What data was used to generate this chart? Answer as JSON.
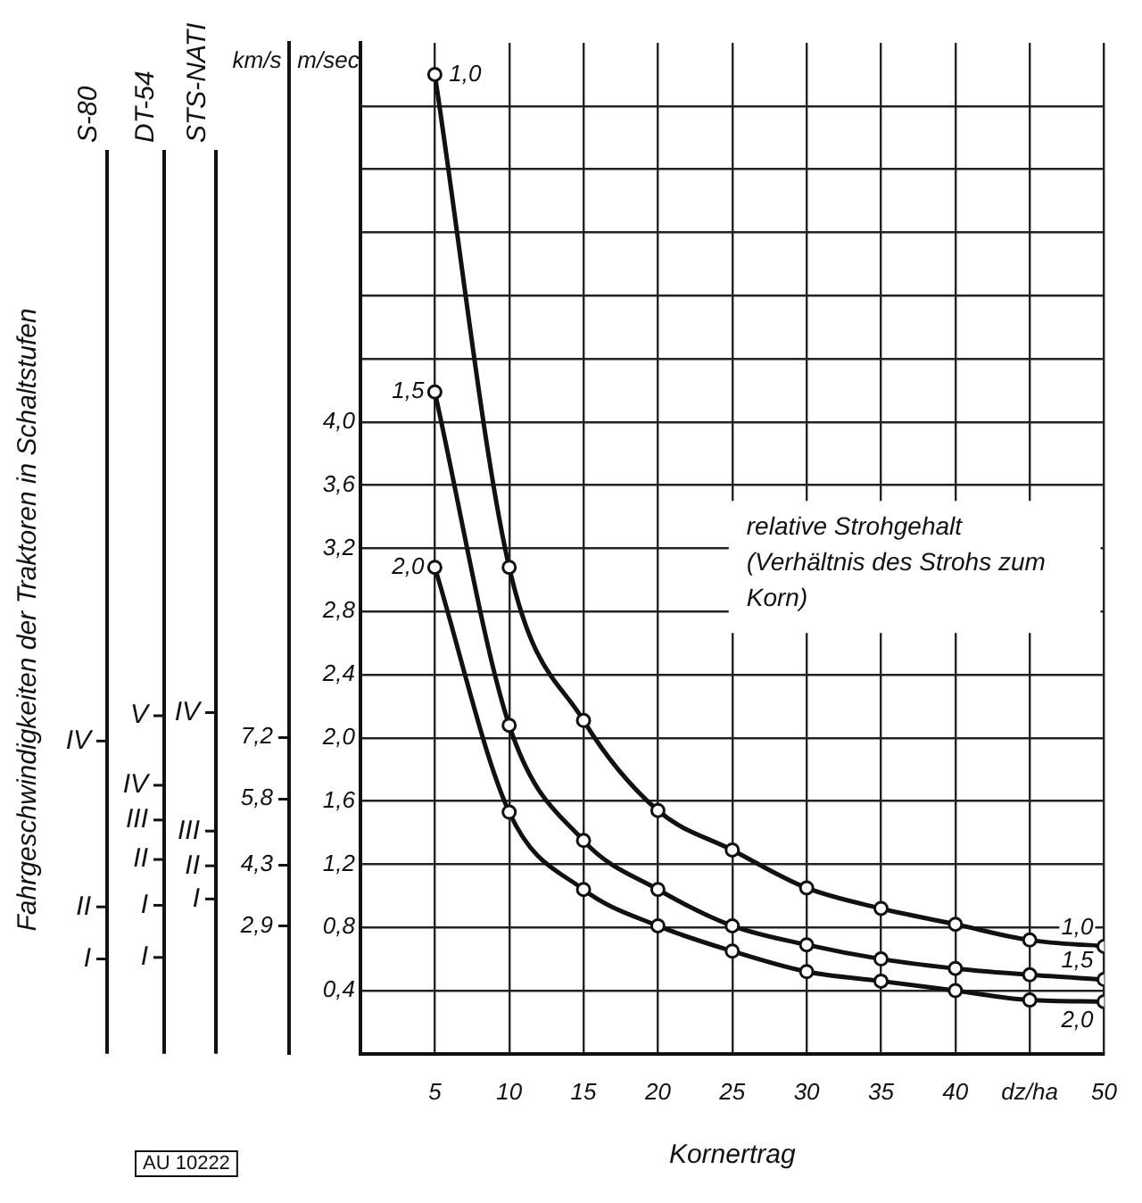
{
  "chart_data": {
    "type": "line",
    "xlabel": "Kornertrag",
    "ylabel": "m/sec",
    "y2label": "km/s",
    "legend_title": "relative Strohgehalt (Verhältnis des Strohs zum Korn)",
    "annotations": [
      "Fahrgeschwindigkeiten der Traktoren in Schaltstufen",
      "AU 10222",
      "S-80",
      "I",
      "II",
      "IV",
      "DT-54",
      "I",
      "I",
      "II",
      "III",
      "IV",
      "V",
      "STS-NATI",
      "I",
      "II",
      "III",
      "IV"
    ],
    "x": [
      5,
      10,
      15,
      20,
      25,
      30,
      35,
      40,
      45,
      50
    ],
    "series": [
      {
        "name": "1,0",
        "color": "#111111",
        "values": [
          6.2,
          3.08,
          2.11,
          1.54,
          1.29,
          1.05,
          0.92,
          0.82,
          0.72,
          0.68
        ]
      },
      {
        "name": "1,5",
        "color": "#111111",
        "values": [
          4.19,
          2.08,
          1.35,
          1.04,
          0.81,
          0.69,
          0.6,
          0.54,
          0.5,
          0.47
        ]
      },
      {
        "name": "2,0",
        "color": "#111111",
        "values": [
          3.08,
          1.53,
          1.04,
          0.81,
          0.65,
          0.52,
          0.46,
          0.4,
          0.34,
          0.33
        ]
      }
    ],
    "xlim": [
      0,
      50
    ],
    "xticks": [
      5,
      10,
      15,
      20,
      25,
      30,
      35,
      40,
      {
        "value": 45,
        "label": "dz/ha"
      },
      50
    ],
    "ylim": [
      0,
      6.4
    ],
    "yticks": [
      {
        "value": 0.4,
        "label": "0,4"
      },
      {
        "value": 0.8,
        "label": "0,8"
      },
      {
        "value": 1.2,
        "label": "1,2"
      },
      {
        "value": 1.6,
        "label": "1,6"
      },
      {
        "value": 2,
        "label": "2,0"
      },
      {
        "value": 2.4,
        "label": "2,4"
      },
      {
        "value": 2.8,
        "label": "2,8"
      },
      {
        "value": 3.2,
        "label": "3,2"
      },
      {
        "value": 3.6,
        "label": "3,6"
      },
      {
        "value": 4,
        "label": "4,0"
      },
      {
        "value": 4.4,
        "label": null
      },
      {
        "value": 4.8,
        "label": null
      },
      {
        "value": 5.2,
        "label": null
      },
      {
        "value": 5.6,
        "label": null
      },
      {
        "value": 6,
        "label": null
      }
    ],
    "y2lim": [
      0,
      23
    ],
    "y2ticks": [
      {
        "value": 2.9,
        "label": "2,9"
      },
      {
        "value": 4.3,
        "label": "4,3"
      },
      {
        "value": 5.8,
        "label": "5,8"
      },
      {
        "value": 7.2,
        "label": "7,2"
      }
    ],
    "grid": true,
    "legend": false,
    "marker": "circle",
    "line_style": "solid"
  }
}
